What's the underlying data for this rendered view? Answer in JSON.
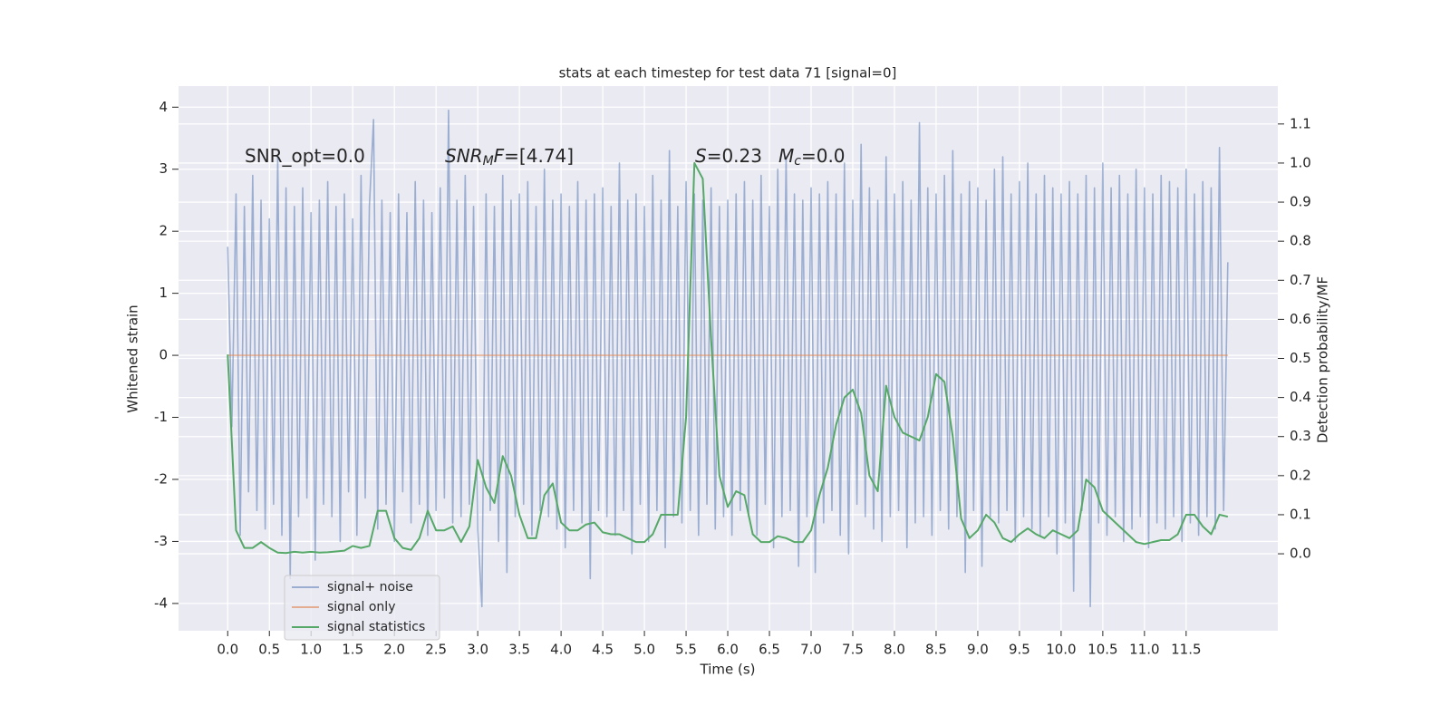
{
  "chart_data": {
    "type": "line",
    "title": "stats at each timestep for test data 71 [signal=0]",
    "xlabel": "Time (s)",
    "ylabel": "Whitened strain",
    "y2label": "Detection probability/MF",
    "xlim": [
      -0.59,
      12.6
    ],
    "ylim": [
      -4.44,
      4.34
    ],
    "y2lim": [
      -0.197,
      1.197
    ],
    "xticks": [
      {
        "value": 0,
        "label": "0.0"
      },
      0.5,
      {
        "value": 1,
        "label": "1.0"
      },
      1.5,
      {
        "value": 2,
        "label": "2.0"
      },
      2.5,
      {
        "value": 3,
        "label": "3.0"
      },
      3.5,
      {
        "value": 4,
        "label": "4.0"
      },
      4.5,
      {
        "value": 5,
        "label": "5.0"
      },
      5.5,
      {
        "value": 6,
        "label": "6.0"
      },
      6.5,
      {
        "value": 7,
        "label": "7.0"
      },
      7.5,
      {
        "value": 8,
        "label": "8.0"
      },
      8.5,
      {
        "value": 9,
        "label": "9.0"
      },
      9.5,
      {
        "value": 10,
        "label": "10.0"
      },
      10.5,
      {
        "value": 11,
        "label": "11.0"
      },
      11.5
    ],
    "yticks": [
      -4,
      -3,
      -2,
      -1,
      0,
      1,
      2,
      3,
      4
    ],
    "y2ticks": [
      {
        "value": 0,
        "label": "0.0"
      },
      0.1,
      0.2,
      0.3,
      0.4,
      0.5,
      0.6,
      0.7,
      0.8,
      0.9,
      {
        "value": 1,
        "label": "1.0"
      },
      1.1
    ],
    "grid": true,
    "legend": "lower left",
    "annotations": [
      {
        "parts": [
          {
            "text": "SNR_opt=0.0"
          }
        ]
      },
      {
        "parts": [
          {
            "text": "SNR",
            "italic": true
          },
          {
            "text": "M",
            "italic": true,
            "sub": true
          },
          {
            "text": "F",
            "italic": true
          },
          {
            "text": "=[4.74]"
          }
        ]
      },
      {
        "parts": [
          {
            "text": "S",
            "italic": true
          },
          {
            "text": "=0.23"
          }
        ]
      },
      {
        "parts": [
          {
            "text": "M",
            "italic": true
          },
          {
            "text": "c",
            "italic": true,
            "sub": true
          },
          {
            "text": "=0.0"
          }
        ]
      }
    ],
    "series": [
      {
        "name": "signal+ noise",
        "color": "#4c72b0",
        "opacity": 0.5,
        "axis": "y",
        "x": [
          0,
          0.05,
          0.1,
          0.15,
          0.2,
          0.25,
          0.3,
          0.35,
          0.4,
          0.45,
          0.5,
          0.55,
          0.6,
          0.65,
          0.7,
          0.75,
          0.8,
          0.85,
          0.9,
          0.95,
          1,
          1.05,
          1.1,
          1.15,
          1.2,
          1.25,
          1.3,
          1.35,
          1.4,
          1.45,
          1.5,
          1.55,
          1.6,
          1.65,
          1.7,
          1.75,
          1.8,
          1.85,
          1.9,
          1.95,
          2,
          2.05,
          2.1,
          2.15,
          2.2,
          2.25,
          2.3,
          2.35,
          2.4,
          2.45,
          2.5,
          2.55,
          2.6,
          2.65,
          2.7,
          2.75,
          2.8,
          2.85,
          2.9,
          2.95,
          3,
          3.05,
          3.1,
          3.15,
          3.2,
          3.25,
          3.3,
          3.35,
          3.4,
          3.45,
          3.5,
          3.55,
          3.6,
          3.65,
          3.7,
          3.75,
          3.8,
          3.85,
          3.9,
          3.95,
          4,
          4.05,
          4.1,
          4.15,
          4.2,
          4.25,
          4.3,
          4.35,
          4.4,
          4.45,
          4.5,
          4.55,
          4.6,
          4.65,
          4.7,
          4.75,
          4.8,
          4.85,
          4.9,
          4.95,
          5,
          5.05,
          5.1,
          5.15,
          5.2,
          5.25,
          5.3,
          5.35,
          5.4,
          5.45,
          5.5,
          5.55,
          5.6,
          5.65,
          5.7,
          5.75,
          5.8,
          5.85,
          5.9,
          5.95,
          6,
          6.05,
          6.1,
          6.15,
          6.2,
          6.25,
          6.3,
          6.35,
          6.4,
          6.45,
          6.5,
          6.55,
          6.6,
          6.65,
          6.7,
          6.75,
          6.8,
          6.85,
          6.9,
          6.95,
          7,
          7.05,
          7.1,
          7.15,
          7.2,
          7.25,
          7.3,
          7.35,
          7.4,
          7.45,
          7.5,
          7.55,
          7.6,
          7.65,
          7.7,
          7.75,
          7.8,
          7.85,
          7.9,
          7.95,
          8,
          8.05,
          8.1,
          8.15,
          8.2,
          8.25,
          8.3,
          8.35,
          8.4,
          8.45,
          8.5,
          8.55,
          8.6,
          8.65,
          8.7,
          8.75,
          8.8,
          8.85,
          8.9,
          8.95,
          9,
          9.05,
          9.1,
          9.15,
          9.2,
          9.25,
          9.3,
          9.35,
          9.4,
          9.45,
          9.5,
          9.55,
          9.6,
          9.65,
          9.7,
          9.75,
          9.8,
          9.85,
          9.9,
          9.95,
          10,
          10.05,
          10.1,
          10.15,
          10.2,
          10.25,
          10.3,
          10.35,
          10.4,
          10.45,
          10.5,
          10.55,
          10.6,
          10.65,
          10.7,
          10.75,
          10.8,
          10.85,
          10.9,
          10.95,
          11,
          11.05,
          11.1,
          11.15,
          11.2,
          11.25,
          11.3,
          11.35,
          11.4,
          11.45,
          11.5,
          11.55,
          11.6,
          11.65,
          11.7,
          11.75,
          11.8,
          11.85,
          11.9,
          11.95,
          12
        ],
        "values": [
          1.75,
          -1.15,
          2.6,
          -2.9,
          2.4,
          -2.2,
          2.9,
          -2.5,
          2.5,
          -2.8,
          2.2,
          -2.4,
          3.2,
          -2.9,
          2.7,
          -3.6,
          2.4,
          -2.6,
          2.7,
          -2.3,
          2.3,
          -3.3,
          2.5,
          -2.4,
          2.8,
          -2.6,
          2.4,
          -3.0,
          2.6,
          -2.2,
          2.2,
          -2.9,
          2.9,
          -2.3,
          2.4,
          3.8,
          -2.8,
          2.5,
          -2.4,
          2.3,
          -3.0,
          2.6,
          -2.2,
          2.3,
          -2.7,
          2.8,
          -2.4,
          2.5,
          -2.9,
          2.3,
          -2.5,
          2.7,
          -2.3,
          3.95,
          -2.7,
          2.5,
          -2.6,
          2.9,
          -2.4,
          2.4,
          -2.8,
          -4.05,
          2.6,
          -2.5,
          2.4,
          -3.0,
          2.9,
          -3.5,
          2.5,
          -2.6,
          2.6,
          -2.4,
          2.8,
          -2.9,
          2.4,
          -2.5,
          3.0,
          -2.6,
          2.5,
          -2.8,
          2.6,
          -3.1,
          2.4,
          -2.5,
          2.8,
          -2.7,
          2.5,
          -3.6,
          2.6,
          -2.5,
          2.7,
          -2.6,
          2.4,
          -2.9,
          3.1,
          -2.5,
          2.5,
          -3.2,
          2.6,
          -2.4,
          2.4,
          -3.0,
          2.9,
          -2.5,
          2.5,
          -3.1,
          3.3,
          -2.6,
          2.4,
          -2.7,
          2.8,
          -2.5,
          2.6,
          -2.9,
          2.5,
          -2.4,
          2.7,
          -2.8,
          2.4,
          -2.6,
          2.5,
          -2.9,
          2.6,
          -2.5,
          2.8,
          -2.6,
          2.5,
          -2.9,
          2.9,
          -2.4,
          2.4,
          -3.1,
          3.0,
          -2.6,
          3.2,
          -2.5,
          2.6,
          -3.4,
          2.5,
          -2.6,
          2.7,
          -3.5,
          2.6,
          -2.7,
          2.8,
          -2.5,
          2.6,
          -2.9,
          3.1,
          -3.2,
          2.5,
          -2.4,
          3.4,
          -2.6,
          2.7,
          -2.8,
          2.5,
          -3.0,
          3.2,
          -2.6,
          2.6,
          -2.5,
          2.8,
          -3.1,
          2.5,
          -2.7,
          3.75,
          -2.6,
          2.7,
          -2.9,
          2.6,
          -2.5,
          2.9,
          -2.8,
          3.3,
          -2.6,
          2.6,
          -3.5,
          2.8,
          -2.5,
          2.7,
          -3.4,
          2.5,
          -2.6,
          3.0,
          -2.7,
          3.2,
          -2.5,
          2.6,
          -3.0,
          2.8,
          -2.6,
          3.1,
          -2.8,
          2.6,
          -2.9,
          2.9,
          -2.6,
          2.7,
          -3.2,
          2.6,
          -2.7,
          2.8,
          -3.8,
          2.6,
          -2.5,
          2.9,
          -4.05,
          2.7,
          -2.7,
          3.1,
          -2.9,
          2.7,
          -2.6,
          2.9,
          -3.0,
          2.6,
          -2.8,
          3.0,
          -2.6,
          2.7,
          -3.1,
          2.6,
          -2.7,
          2.9,
          -2.8,
          2.8,
          -2.6,
          2.7,
          -3.0,
          3.0,
          -2.7,
          2.6,
          -2.9,
          2.8,
          -2.6,
          2.7,
          -2.8,
          3.35,
          -2.5,
          1.5
        ]
      },
      {
        "name": "signal only",
        "color": "#dd8452",
        "opacity": 0.6,
        "axis": "y",
        "x": [
          0,
          12
        ],
        "values": [
          0,
          0
        ]
      },
      {
        "name": "signal statistics",
        "color": "#55a868",
        "opacity": 1,
        "axis": "y2",
        "x": [
          0,
          0.1,
          0.2,
          0.3,
          0.4,
          0.5,
          0.6,
          0.7,
          0.8,
          0.9,
          1,
          1.1,
          1.2,
          1.3,
          1.4,
          1.5,
          1.6,
          1.7,
          1.8,
          1.9,
          2,
          2.1,
          2.2,
          2.3,
          2.4,
          2.5,
          2.6,
          2.7,
          2.8,
          2.9,
          3,
          3.1,
          3.2,
          3.3,
          3.4,
          3.5,
          3.6,
          3.7,
          3.8,
          3.9,
          4,
          4.1,
          4.2,
          4.3,
          4.4,
          4.5,
          4.6,
          4.7,
          4.8,
          4.9,
          5,
          5.1,
          5.2,
          5.3,
          5.4,
          5.5,
          5.6,
          5.7,
          5.8,
          5.9,
          6,
          6.1,
          6.2,
          6.3,
          6.4,
          6.5,
          6.6,
          6.7,
          6.8,
          6.9,
          7,
          7.1,
          7.2,
          7.3,
          7.4,
          7.5,
          7.6,
          7.7,
          7.8,
          7.9,
          8,
          8.1,
          8.2,
          8.3,
          8.4,
          8.5,
          8.6,
          8.7,
          8.8,
          8.9,
          9,
          9.1,
          9.2,
          9.3,
          9.4,
          9.5,
          9.6,
          9.7,
          9.8,
          9.9,
          10,
          10.1,
          10.2,
          10.3,
          10.4,
          10.5,
          10.6,
          10.7,
          10.8,
          10.9,
          11,
          11.1,
          11.2,
          11.3,
          11.4,
          11.5,
          11.6,
          11.7,
          11.8,
          11.9,
          12
        ],
        "values": [
          0.51,
          0.06,
          0.015,
          0.015,
          0.03,
          0.015,
          0.003,
          0.002,
          0.005,
          0.003,
          0.005,
          0.003,
          0.004,
          0.006,
          0.008,
          0.02,
          0.015,
          0.02,
          0.11,
          0.11,
          0.04,
          0.015,
          0.01,
          0.04,
          0.11,
          0.06,
          0.06,
          0.07,
          0.03,
          0.07,
          0.24,
          0.17,
          0.13,
          0.25,
          0.2,
          0.1,
          0.04,
          0.04,
          0.15,
          0.18,
          0.08,
          0.06,
          0.06,
          0.075,
          0.08,
          0.055,
          0.05,
          0.05,
          0.04,
          0.03,
          0.03,
          0.05,
          0.1,
          0.1,
          0.1,
          0.35,
          1.0,
          0.96,
          0.55,
          0.2,
          0.12,
          0.16,
          0.15,
          0.05,
          0.03,
          0.03,
          0.045,
          0.04,
          0.03,
          0.03,
          0.06,
          0.15,
          0.22,
          0.33,
          0.4,
          0.42,
          0.36,
          0.2,
          0.16,
          0.43,
          0.35,
          0.31,
          0.3,
          0.29,
          0.35,
          0.46,
          0.44,
          0.3,
          0.09,
          0.04,
          0.06,
          0.1,
          0.08,
          0.04,
          0.03,
          0.05,
          0.065,
          0.05,
          0.04,
          0.06,
          0.05,
          0.04,
          0.06,
          0.19,
          0.17,
          0.11,
          0.09,
          0.07,
          0.05,
          0.03,
          0.025,
          0.03,
          0.035,
          0.035,
          0.05,
          0.1,
          0.1,
          0.07,
          0.05,
          0.1,
          0.095
        ]
      }
    ]
  }
}
